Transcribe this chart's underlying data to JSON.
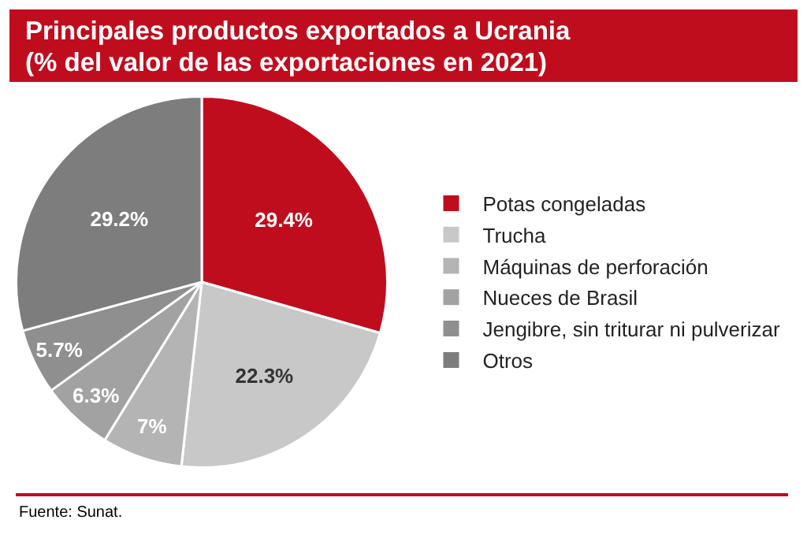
{
  "chart_data": {
    "type": "pie",
    "title": "Principales productos exportados a Ucrania\n(% del valor de las exportaciones en 2021)",
    "categories": [
      "Potas congeladas",
      "Trucha",
      "Máquinas de perforación",
      "Nueces de Brasil",
      "Jengibre, sin triturar ni pulverizar",
      "Otros"
    ],
    "values": [
      29.4,
      22.3,
      7,
      6.3,
      5.7,
      29.2
    ],
    "value_labels": [
      "29.4%",
      "22.3%",
      "7%",
      "6.3%",
      "5.7%",
      "29.2%"
    ],
    "colors": [
      "#c00d1e",
      "#c8c8c8",
      "#b4b4b4",
      "#a2a2a2",
      "#8f8f8f",
      "#7d7d7d"
    ],
    "legend": "right",
    "annotations": [
      "Fuente: Sunat."
    ]
  }
}
